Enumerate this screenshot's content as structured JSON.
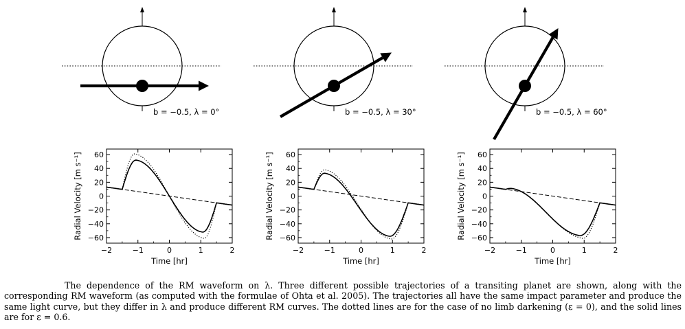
{
  "figure": {
    "panels": [
      {
        "diagram_label": "b = −0.5,  λ = 0°",
        "b": -0.5,
        "lambda_deg": 0,
        "chart_data": {
          "type": "line",
          "xlabel": "Time [hr]",
          "ylabel": "Radial Velocity [m s⁻¹]",
          "xlim": [
            -2,
            2
          ],
          "ylim": [
            -68,
            68
          ],
          "xticks": [
            "−2",
            "−1",
            "0",
            "1",
            "2"
          ],
          "yticks": [
            "60",
            "40",
            "20",
            "0",
            "−20",
            "−40",
            "−60"
          ],
          "series": [
            {
              "style": "solid",
              "peak": {
                "t": -1.05,
                "v": 52
              },
              "trough": {
                "t": 1.05,
                "v": -52
              }
            },
            {
              "style": "dotted",
              "peak": {
                "t": -1.1,
                "v": 61
              },
              "trough": {
                "t": 1.1,
                "v": -61
              }
            },
            {
              "style": "dashed",
              "x": [
                -2,
                2
              ],
              "y": [
                13,
                -13
              ]
            }
          ]
        }
      },
      {
        "diagram_label": "b = −0.5,  λ = 30°",
        "b": -0.5,
        "lambda_deg": 30,
        "chart_data": {
          "type": "line",
          "xlabel": "Time [hr]",
          "ylabel": "Radial Velocity [m s⁻¹]",
          "xlim": [
            -2,
            2
          ],
          "ylim": [
            -68,
            68
          ],
          "xticks": [
            "−2",
            "−1",
            "0",
            "1",
            "2"
          ],
          "yticks": [
            "60",
            "40",
            "20",
            "0",
            "−20",
            "−40",
            "−60"
          ],
          "series": [
            {
              "style": "solid",
              "peak": {
                "t": -1.15,
                "v": 33
              },
              "trough": {
                "t": 0.9,
                "v": -58
              }
            },
            {
              "style": "dotted",
              "peak": {
                "t": -1.15,
                "v": 38
              },
              "trough": {
                "t": 0.95,
                "v": -62
              }
            },
            {
              "style": "dashed",
              "x": [
                -2,
                2
              ],
              "y": [
                13,
                -13
              ]
            }
          ]
        }
      },
      {
        "diagram_label": "b = −0.5,  λ = 60°",
        "b": -0.5,
        "lambda_deg": 60,
        "chart_data": {
          "type": "line",
          "xlabel": "Time [hr]",
          "ylabel": "Radial Velocity [m s⁻¹]",
          "xlim": [
            -2,
            2
          ],
          "ylim": [
            -68,
            68
          ],
          "xticks": [
            "−2",
            "−1",
            "0",
            "1",
            "2"
          ],
          "yticks": [
            "60",
            "40",
            "20",
            "0",
            "−20",
            "−40",
            "−60"
          ],
          "series": [
            {
              "style": "solid",
              "peak": {
                "t": -1.3,
                "v": 11
              },
              "trough": {
                "t": 0.85,
                "v": -57
              }
            },
            {
              "style": "dotted",
              "peak": {
                "t": -1.3,
                "v": 11
              },
              "trough": {
                "t": 0.95,
                "v": -61
              }
            },
            {
              "style": "dashed",
              "x": [
                -2,
                2
              ],
              "y": [
                13,
                -13
              ]
            }
          ]
        }
      }
    ]
  },
  "caption": "The dependence of the RM waveform on λ. Three different possible trajectories of a transiting planet are shown, along with the corresponding RM waveform (as computed with the formulae of Ohta et al. 2005). The trajectories all have the same impact parameter and produce the same light curve, but they differ in λ and produce different RM curves. The dotted lines are for the case of no limb darkening (ε = 0), and the solid lines are for ε = 0.6."
}
